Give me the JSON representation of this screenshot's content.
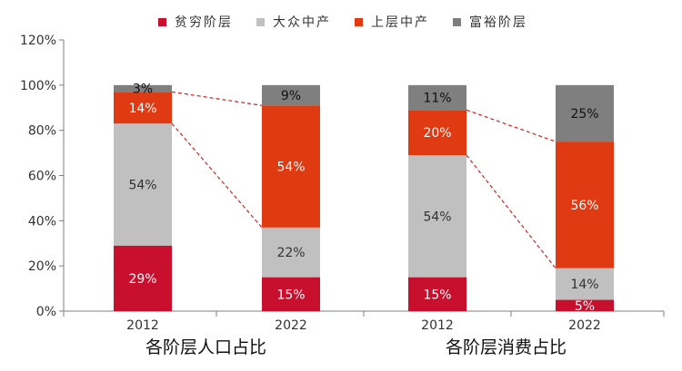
{
  "chart_data": {
    "type": "bar",
    "stacked": true,
    "normalized": true,
    "categories": [
      "2012",
      "2022",
      "2012",
      "2022"
    ],
    "groups": [
      {
        "label": "各阶层人口占比",
        "categories": [
          "2012",
          "2022"
        ]
      },
      {
        "label": "各阶层消费占比",
        "categories": [
          "2012",
          "2022"
        ]
      }
    ],
    "series": [
      {
        "name": "贫穷阶层",
        "color": "#c8102e",
        "values": [
          29,
          15,
          15,
          5
        ],
        "labels": [
          "29%",
          "15%",
          "15%",
          "5%"
        ]
      },
      {
        "name": "大众中产",
        "color": "#c0c0c0",
        "values": [
          54,
          22,
          54,
          14
        ],
        "labels": [
          "54%",
          "22%",
          "54%",
          "14%"
        ]
      },
      {
        "name": "上层中产",
        "color": "#e03a12",
        "values": [
          14,
          54,
          20,
          56
        ],
        "labels": [
          "14%",
          "54%",
          "20%",
          "56%"
        ]
      },
      {
        "name": "富裕阶层",
        "color": "#7f7f7f",
        "values": [
          3,
          9,
          11,
          25
        ],
        "labels": [
          "3%",
          "9%",
          "11%",
          "25%"
        ]
      }
    ],
    "y_ticks": [
      "0%",
      "20%",
      "40%",
      "60%",
      "80%",
      "100%",
      "120%"
    ],
    "ylim": [
      0,
      120
    ],
    "legend_position": "top",
    "annotations": "dashed connector lines between the upper-middle-class segments of 2012 and 2022 bars"
  }
}
